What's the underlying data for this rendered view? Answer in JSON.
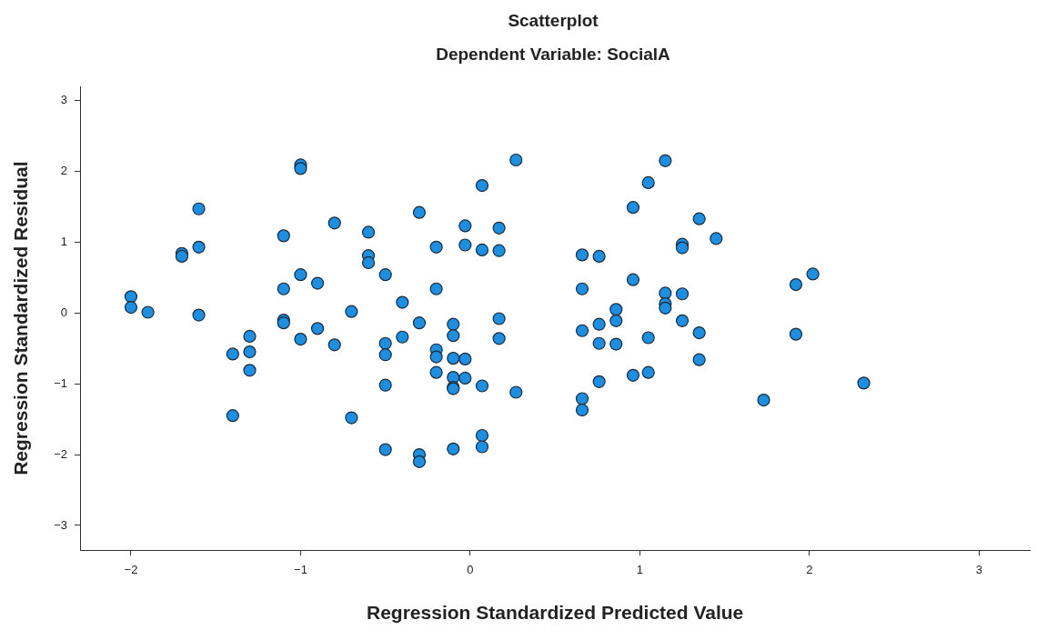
{
  "chart_data": {
    "type": "scatter",
    "title": "Scatterplot",
    "subtitle": "Dependent Variable: SocialA",
    "xlabel": "Regression Standardized Predicted Value",
    "ylabel": "Regression Standardized Residual",
    "xlim": [
      -2.3,
      3.3
    ],
    "ylim": [
      -3.35,
      3.2
    ],
    "xticks": [
      -2,
      -1,
      0,
      1,
      2,
      3
    ],
    "yticks": [
      -3,
      -2,
      -1,
      0,
      1,
      2,
      3
    ],
    "grid": false,
    "legend": false,
    "marker": "circle",
    "series": [
      {
        "color": "#1e8fe0",
        "x": [
          -2,
          -2,
          -1.9,
          -1.7,
          -1.7,
          -1.6,
          -1.6,
          -1.6,
          -1.4,
          -1.4,
          -1.3,
          -1.3,
          -1.3,
          -1.1,
          -1.1,
          -1.1,
          -1.1,
          -1,
          -1,
          -1,
          -1,
          -0.9,
          -0.9,
          -0.8,
          -0.8,
          -0.7,
          -0.7,
          -0.6,
          -0.6,
          -0.6,
          -0.5,
          -0.5,
          -0.5,
          -0.5,
          -0.5,
          -0.4,
          -0.4,
          -0.3,
          -0.3,
          -0.3,
          -0.3,
          -0.2,
          -0.2,
          -0.2,
          -0.2,
          -0.2,
          -0.1,
          -0.1,
          -0.1,
          -0.1,
          -0.1,
          -0.1,
          -0.1,
          -0.03,
          -0.03,
          -0.03,
          -0.03,
          0.07,
          0.07,
          0.07,
          0.07,
          0.07,
          0.17,
          0.17,
          0.17,
          0.17,
          0.27,
          0.27,
          0.66,
          0.66,
          0.66,
          0.66,
          0.66,
          0.76,
          0.76,
          0.76,
          0.76,
          0.86,
          0.86,
          0.86,
          0.96,
          0.96,
          0.96,
          1.05,
          1.05,
          1.05,
          1.15,
          1.15,
          1.15,
          1.15,
          1.25,
          1.25,
          1.25,
          1.25,
          1.35,
          1.35,
          1.35,
          1.45,
          1.73,
          1.92,
          1.92,
          2.02,
          2.32
        ],
        "values": [
          0.23,
          0.08,
          0.01,
          0.84,
          0.8,
          1.47,
          0.93,
          -0.03,
          -0.58,
          -1.45,
          -0.33,
          -0.55,
          -0.81,
          1.09,
          0.34,
          -0.1,
          -0.14,
          2.09,
          2.04,
          0.54,
          -0.37,
          0.42,
          -0.22,
          1.27,
          -0.45,
          0.02,
          -1.48,
          1.14,
          0.81,
          0.71,
          0.54,
          -0.43,
          -0.59,
          -1.02,
          -1.93,
          0.15,
          -0.34,
          1.42,
          -0.14,
          -2,
          -2.1,
          0.93,
          0.34,
          -0.52,
          -0.62,
          -0.84,
          -0.16,
          -0.32,
          -0.64,
          -0.91,
          -1.05,
          -1.07,
          -1.92,
          1.23,
          0.96,
          -0.65,
          -0.92,
          1.8,
          0.89,
          -1.03,
          -1.73,
          -1.89,
          1.2,
          0.88,
          -0.08,
          -0.36,
          2.16,
          -1.12,
          0.82,
          0.34,
          -0.25,
          -1.21,
          -1.37,
          0.8,
          -0.16,
          -0.43,
          -0.97,
          0.05,
          -0.11,
          -0.44,
          1.49,
          0.47,
          -0.88,
          1.84,
          -0.35,
          -0.84,
          2.15,
          0.28,
          0.13,
          0.07,
          0.97,
          0.92,
          0.27,
          -0.11,
          1.33,
          -0.28,
          -0.66,
          1.05,
          -1.23,
          0.4,
          -0.3,
          0.55,
          -0.99
        ]
      }
    ]
  }
}
